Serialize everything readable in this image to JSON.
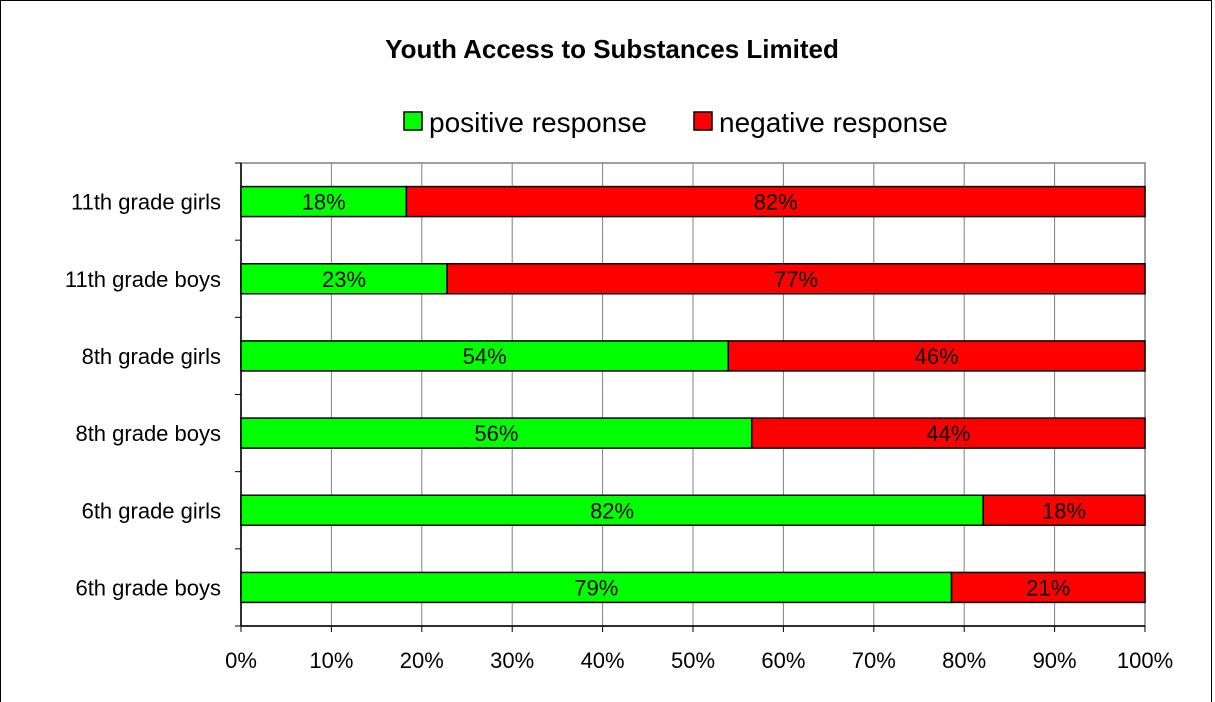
{
  "chart_data": {
    "type": "bar",
    "orientation": "horizontal",
    "stacked": true,
    "title": "Youth Access to Substances Limited",
    "categories": [
      "11th grade girls",
      "11th grade boys",
      "8th grade girls",
      "8th grade boys",
      "6th grade girls",
      "6th grade boys"
    ],
    "series": [
      {
        "name": "positive response",
        "color": "#00ff00",
        "values": [
          18.3,
          22.8,
          53.9,
          56.5,
          82.1,
          78.6
        ],
        "labels": [
          "18%",
          "23%",
          "54%",
          "56%",
          "82%",
          "79%"
        ]
      },
      {
        "name": "negative response",
        "color": "#ff0000",
        "values": [
          81.7,
          77.2,
          46.1,
          43.5,
          17.9,
          21.4
        ],
        "labels": [
          "82%",
          "77%",
          "46%",
          "44%",
          "18%",
          "21%"
        ]
      }
    ],
    "x_ticks": [
      "0%",
      "10%",
      "20%",
      "30%",
      "40%",
      "50%",
      "60%",
      "70%",
      "80%",
      "90%",
      "100%"
    ],
    "xlim": [
      0,
      100
    ],
    "grid": "vertical",
    "legend_position": "top"
  }
}
